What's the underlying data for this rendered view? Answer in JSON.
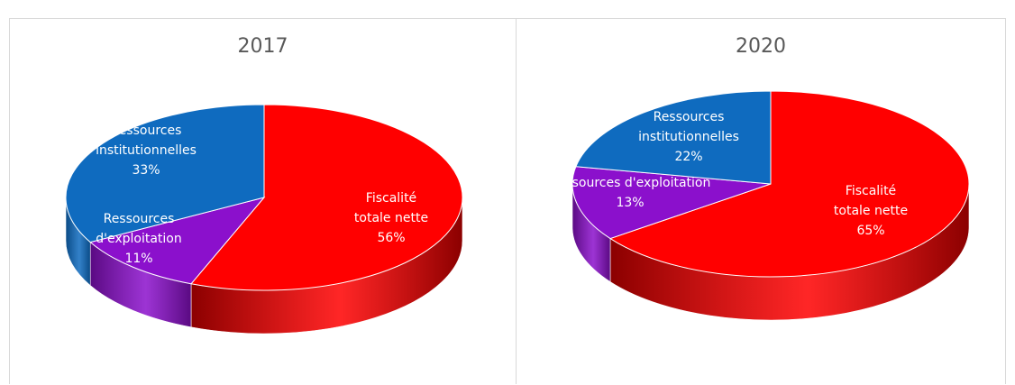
{
  "chart_data": [
    {
      "type": "pie",
      "title": "2017",
      "slices": [
        {
          "name": "Fiscalité totale nette",
          "label_lines": [
            "Fiscalité",
            "totale nette",
            "56%"
          ],
          "value": 56,
          "color": "#ff0000",
          "side_color": "#8b0000"
        },
        {
          "name": "Ressources d'exploitation",
          "label_lines": [
            "Ressources",
            "d'exploitation",
            "11%"
          ],
          "value": 11,
          "color": "#8b10cc",
          "side_color": "#5a0a82"
        },
        {
          "name": "Ressources institutionnelles",
          "label_lines": [
            "Ressources",
            "institutionnelles",
            "33%"
          ],
          "value": 33,
          "color": "#0f6bbf",
          "side_color": "#0a4a85"
        }
      ]
    },
    {
      "type": "pie",
      "title": "2020",
      "slices": [
        {
          "name": "Fiscalité totale nette",
          "label_lines": [
            "Fiscalité",
            "totale nette",
            "65%"
          ],
          "value": 65,
          "color": "#ff0000",
          "side_color": "#8b0000"
        },
        {
          "name": "Ressources d'exploitation",
          "label_lines": [
            "Ressources d'exploitation",
            "13%"
          ],
          "value": 13,
          "color": "#8b10cc",
          "side_color": "#5a0a82"
        },
        {
          "name": "Ressources institutionnelles",
          "label_lines": [
            "Ressources",
            "institutionnelles",
            "22%"
          ],
          "value": 22,
          "color": "#0f6bbf",
          "side_color": "#0a4a85"
        }
      ]
    }
  ]
}
